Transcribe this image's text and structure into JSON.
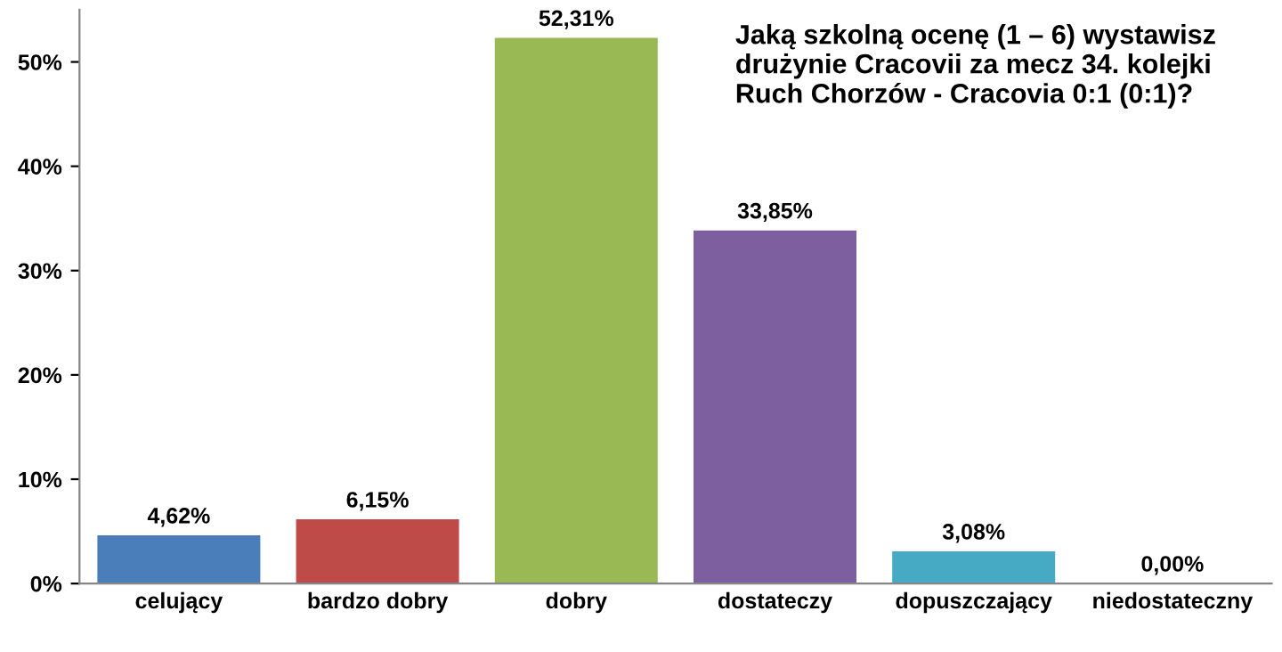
{
  "chart_data": {
    "type": "bar",
    "title": "Jaką szkolną ocenę (1 – 6) wystawisz drużynie Cracovii za mecz 34. kolejki Ruch Chorzów - Cracovia 0:1 (0:1)?",
    "categories": [
      "celujący",
      "bardzo dobry",
      "dobry",
      "dostateczy",
      "dopuszczający",
      "niedostateczny"
    ],
    "values": [
      4.62,
      6.15,
      52.31,
      33.85,
      3.08,
      0.0
    ],
    "colors": [
      "#4a7ebb",
      "#be4b48",
      "#98b954",
      "#7d5fa0",
      "#46aac5",
      "#f79646"
    ],
    "value_labels": [
      "4,62%",
      "6,15%",
      "52,31%",
      "33,85%",
      "3,08%",
      "0,00%"
    ],
    "ylim": [
      0,
      55
    ],
    "yticks": [
      {
        "value": 0,
        "label": "0%"
      },
      {
        "value": 10,
        "label": "10%"
      },
      {
        "value": 20,
        "label": "20%"
      },
      {
        "value": 30,
        "label": "30%"
      },
      {
        "value": 40,
        "label": "40%"
      },
      {
        "value": 50,
        "label": "50%"
      }
    ],
    "grid": false,
    "legend": false
  }
}
